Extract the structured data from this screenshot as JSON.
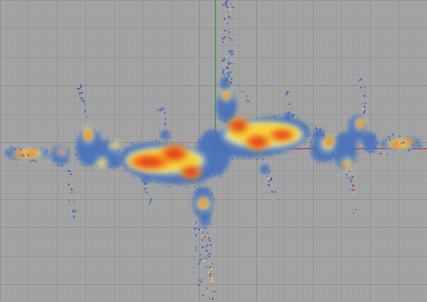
{
  "canvas": {
    "background_color": "#a4a4a4",
    "grid": true,
    "grid_minor_color": "#9a9a9a",
    "grid_major_color": "#8f8f8f"
  },
  "axes": {
    "vertical_axis_color": "#2f9a3a",
    "horizontal_axis_color": "#b02a2a"
  },
  "density_colormap": [
    "#4a72b8",
    "#f0f0c8",
    "#f4d23a",
    "#f08a1e",
    "#e4401a"
  ],
  "scatter_point_colors": [
    "#4a72b8",
    "#5b83c6",
    "#3f66aa",
    "#e4401a",
    "#f4d23a",
    "#8fb3e0"
  ]
}
